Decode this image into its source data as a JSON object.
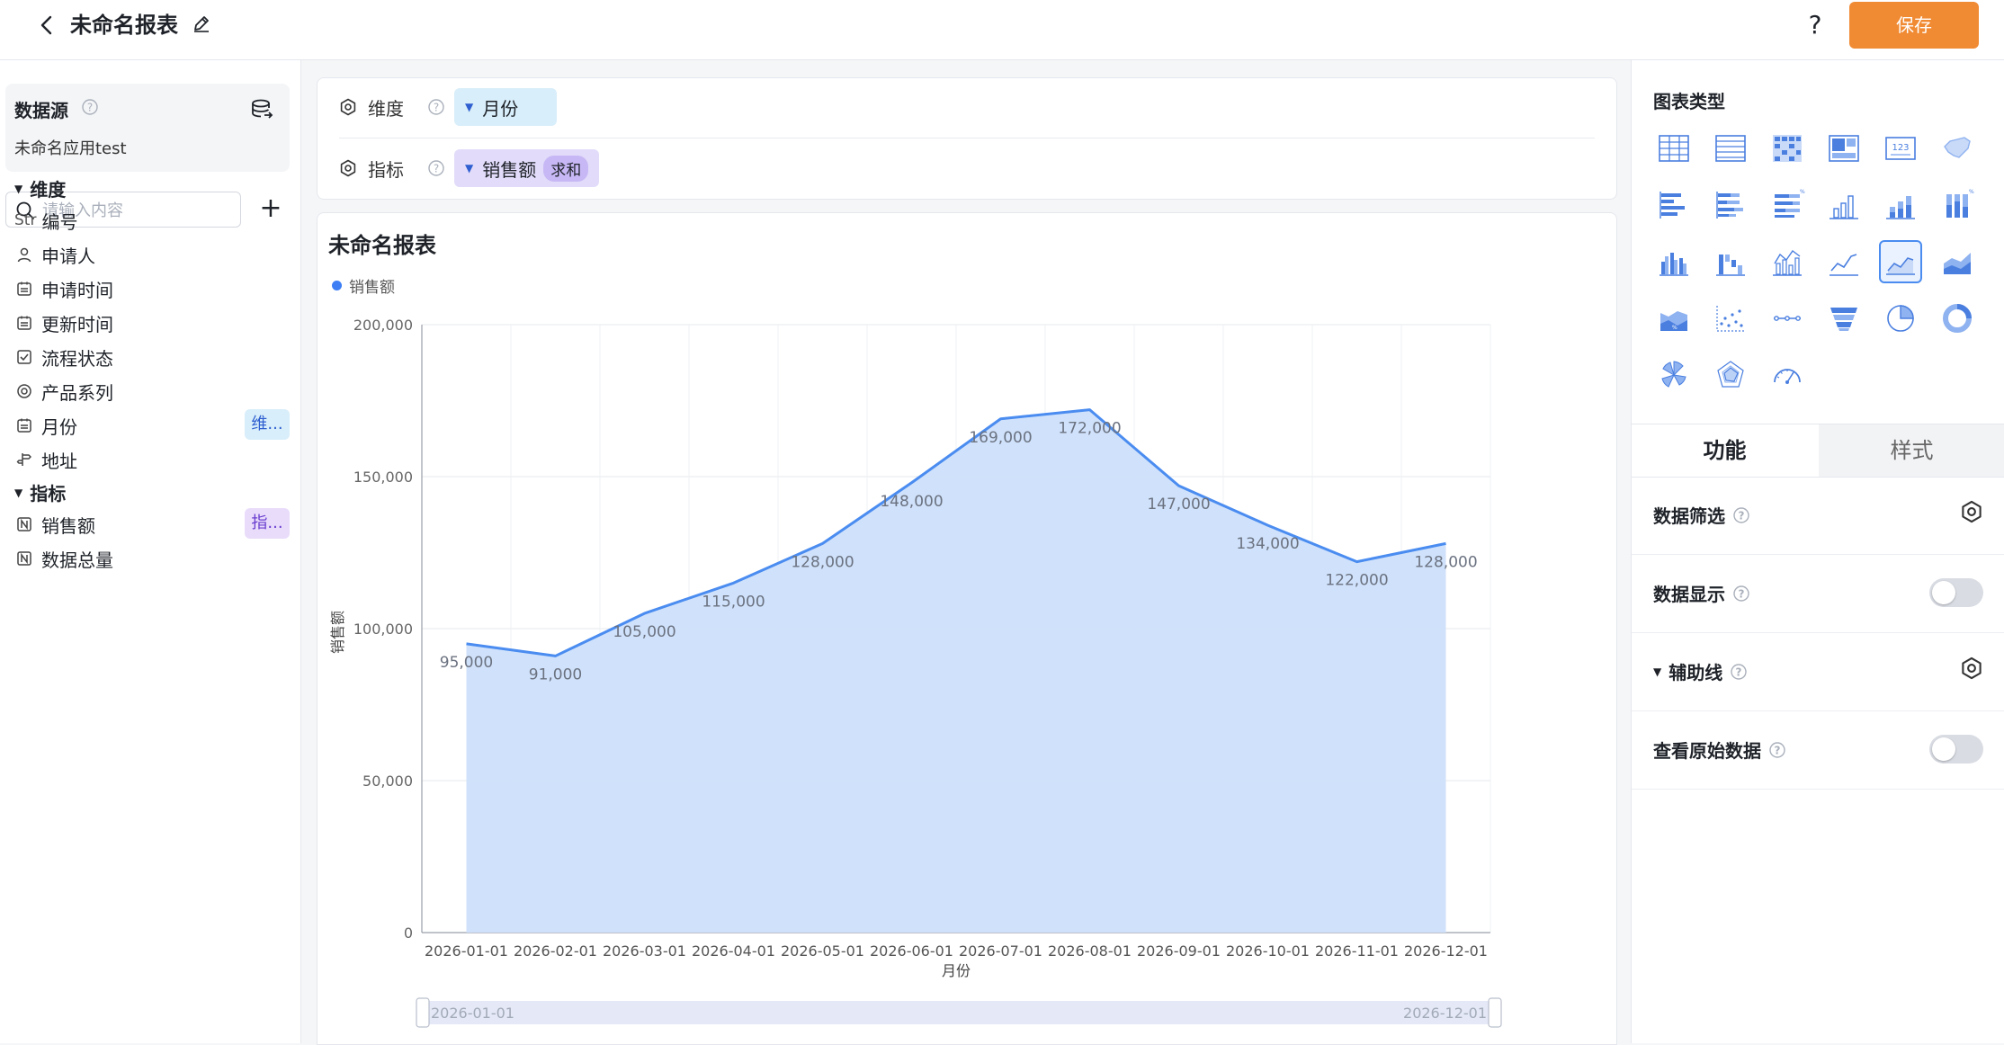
{
  "header": {
    "title": "未命名报表",
    "save_label": "保存",
    "help_label": "?"
  },
  "left_panel": {
    "datasource_title": "数据源",
    "datasource_name": "未命名应用test",
    "search_placeholder": "请输入内容",
    "dimensions_title": "维度",
    "dimension_fields": [
      {
        "label": "编号",
        "icon": "Str"
      },
      {
        "label": "申请人",
        "icon": "person-icon"
      },
      {
        "label": "申请时间",
        "icon": "calendar-icon"
      },
      {
        "label": "更新时间",
        "icon": "calendar-icon"
      },
      {
        "label": "流程状态",
        "icon": "checkbox-icon"
      },
      {
        "label": "产品系列",
        "icon": "radio-icon"
      },
      {
        "label": "月份",
        "icon": "calendar-icon",
        "tag": "维..."
      },
      {
        "label": "地址",
        "icon": "location-icon"
      }
    ],
    "measures_title": "指标",
    "measure_fields": [
      {
        "label": "销售额",
        "icon": "number-icon",
        "tag": "指..."
      },
      {
        "label": "数据总量",
        "icon": "number-icon"
      }
    ]
  },
  "config": {
    "dimension_label": "维度",
    "dimension_value": "月份",
    "measure_label": "指标",
    "measure_value": "销售额",
    "measure_agg": "求和"
  },
  "chart_data": {
    "type": "area",
    "title": "未命名报表",
    "xlabel": "月份",
    "ylabel": "销售额",
    "ylim": [
      0,
      200000
    ],
    "y_ticks": [
      "0",
      "50,000",
      "100,000",
      "150,000",
      "200,000"
    ],
    "legend_position": "top-left",
    "grid": true,
    "categories": [
      "2026-01-01",
      "2026-02-01",
      "2026-03-01",
      "2026-04-01",
      "2026-05-01",
      "2026-06-01",
      "2026-07-01",
      "2026-08-01",
      "2026-09-01",
      "2026-10-01",
      "2026-11-01",
      "2026-12-01"
    ],
    "series": [
      {
        "name": "销售额",
        "values": [
          95000,
          91000,
          105000,
          115000,
          128000,
          148000,
          169000,
          172000,
          147000,
          134000,
          122000,
          128000
        ],
        "labels": [
          "95,000",
          "91,000",
          "105,000",
          "115,000",
          "128,000",
          "148,000",
          "169,000",
          "172,000",
          "147,000",
          "134,000",
          "122,000",
          "128,000"
        ]
      }
    ],
    "colors": {
      "line": "#4a8cf0",
      "fill": "#cde0fb"
    },
    "zoom_range_start": "2026-01-01",
    "zoom_range_end": "2026-12-01"
  },
  "right_panel": {
    "chart_type_title": "图表类型",
    "chart_types": [
      "table",
      "detail-table",
      "cross-table",
      "indicator-card",
      "number-card",
      "map",
      "bar-horizontal",
      "stacked-bar-horizontal",
      "percent-bar-horizontal",
      "column",
      "stacked-column",
      "percent-column",
      "grouped-column",
      "waterfall",
      "combo",
      "line",
      "area",
      "stacked-area",
      "percent-area",
      "scatter",
      "dot-line",
      "funnel",
      "pie",
      "donut",
      "rose",
      "radar",
      "gauge"
    ],
    "selected_chart_type": "area",
    "tabs": [
      "功能",
      "样式"
    ],
    "active_tab": "功能",
    "options": [
      {
        "label": "数据筛选",
        "control": "gear",
        "help": true
      },
      {
        "label": "数据显示",
        "control": "toggle",
        "help": true,
        "on": false
      },
      {
        "label": "辅助线",
        "control": "gear",
        "help": true,
        "collapsible": true
      },
      {
        "label": "查看原始数据",
        "control": "toggle",
        "help": true,
        "on": false
      }
    ]
  }
}
